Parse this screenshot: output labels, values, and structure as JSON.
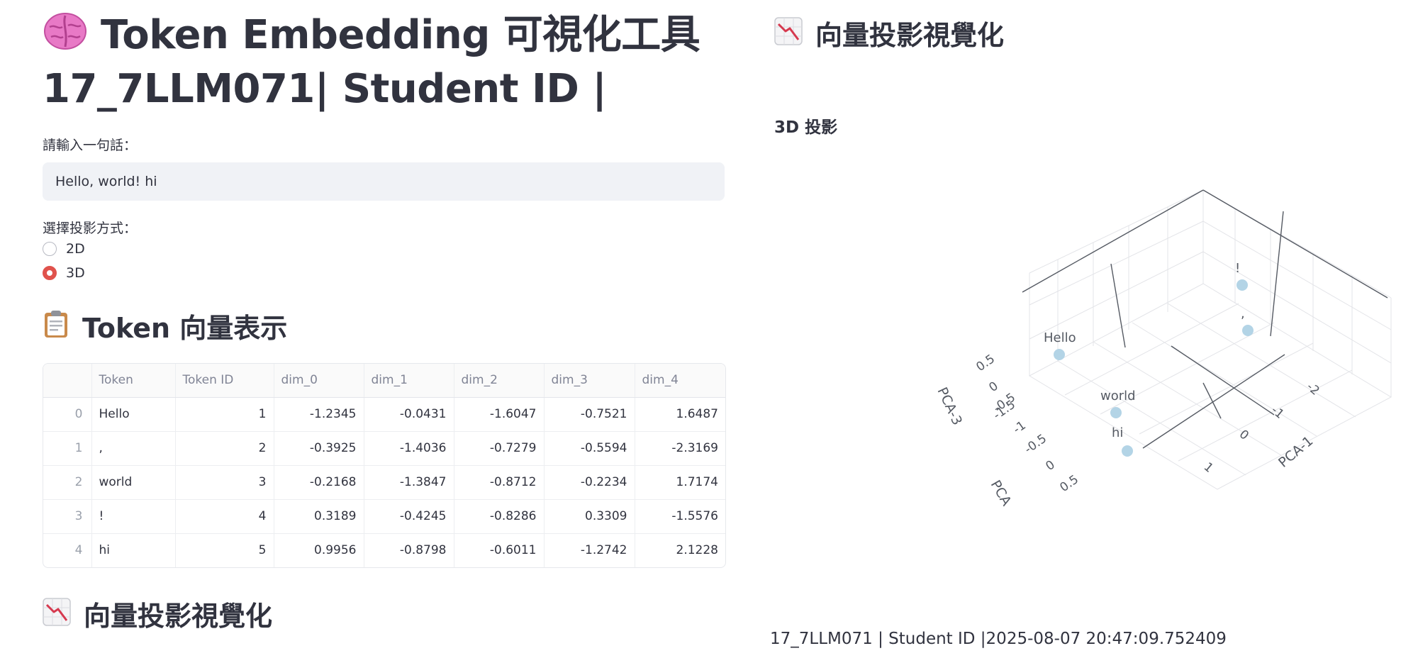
{
  "header": {
    "title_line1": "Token Embedding 可視化工具",
    "title_line2": "17_7LLM071| Student ID |",
    "title_icon": "brain-icon"
  },
  "input": {
    "label": "請輸入一句話：",
    "value": "Hello, world! hi"
  },
  "projection": {
    "label": "選擇投影方式：",
    "options": [
      "2D",
      "3D"
    ],
    "selected": "3D"
  },
  "table_section": {
    "title": "Token 向量表示",
    "icon": "clipboard-icon",
    "columns": [
      "",
      "Token",
      "Token ID",
      "dim_0",
      "dim_1",
      "dim_2",
      "dim_3",
      "dim_4"
    ],
    "rows": [
      [
        "0",
        "Hello",
        "1",
        "-1.2345",
        "-0.0431",
        "-1.6047",
        "-0.7521",
        "1.6487"
      ],
      [
        "1",
        ",",
        "2",
        "-0.3925",
        "-1.4036",
        "-0.7279",
        "-0.5594",
        "-2.3169"
      ],
      [
        "2",
        "world",
        "3",
        "-0.2168",
        "-1.3847",
        "-0.8712",
        "-0.2234",
        "1.7174"
      ],
      [
        "3",
        "!",
        "4",
        "0.3189",
        "-0.4245",
        "-0.8286",
        "0.3309",
        "-1.5576"
      ],
      [
        "4",
        "hi",
        "5",
        "0.9956",
        "-0.8798",
        "-0.6011",
        "-1.2742",
        "2.1228"
      ]
    ]
  },
  "viz_section": {
    "title": "向量投影視覺化",
    "icon": "chart-decreasing-icon",
    "subheader": "3D 投影"
  },
  "chart_data": {
    "type": "scatter",
    "projection": "3d",
    "x_label": "PCA-1",
    "y_label": "PCA",
    "z_label": "PCA-3",
    "x_ticks": [
      "-2",
      "-1",
      "0",
      "1"
    ],
    "y_ticks": [
      "-1.5",
      "-1",
      "-0.5",
      "0",
      "0.5"
    ],
    "z_ticks": [
      "0.5",
      "0",
      "-0.5"
    ],
    "marker_color": "#b3d4e6",
    "points": [
      {
        "label": "Hello"
      },
      {
        "label": ","
      },
      {
        "label": "world"
      },
      {
        "label": "!"
      },
      {
        "label": "hi"
      }
    ]
  },
  "footer": {
    "text": "17_7LLM071 | Student ID |2025-08-07 20:47:09.752409"
  }
}
